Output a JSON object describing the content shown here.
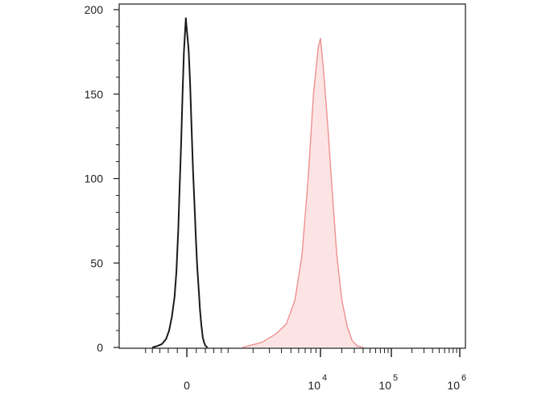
{
  "chart_data": {
    "type": "area",
    "title": "",
    "xlabel": "",
    "ylabel": "",
    "ylim": [
      0,
      200
    ],
    "y_ticks": [
      "0",
      "50",
      "100",
      "150",
      "200"
    ],
    "x_ticks": [
      {
        "base": "0",
        "exp": ""
      },
      {
        "base": "10",
        "exp": "4"
      },
      {
        "base": "10",
        "exp": "5"
      },
      {
        "base": "10",
        "exp": "6"
      }
    ],
    "x_scale": "biexponential",
    "grid": false,
    "legend": "none",
    "series": [
      {
        "color": "#1a1a1a",
        "fill": "none",
        "points": [
          [
            -800,
            0
          ],
          [
            -650,
            1
          ],
          [
            -550,
            2
          ],
          [
            -450,
            5
          ],
          [
            -380,
            10
          ],
          [
            -320,
            18
          ],
          [
            -260,
            30
          ],
          [
            -220,
            45
          ],
          [
            -180,
            70
          ],
          [
            -150,
            95
          ],
          [
            -120,
            120
          ],
          [
            -90,
            150
          ],
          [
            -60,
            175
          ],
          [
            -40,
            185
          ],
          [
            -20,
            195
          ],
          [
            0,
            188
          ],
          [
            20,
            182
          ],
          [
            40,
            175
          ],
          [
            70,
            155
          ],
          [
            100,
            130
          ],
          [
            130,
            105
          ],
          [
            160,
            85
          ],
          [
            190,
            65
          ],
          [
            220,
            48
          ],
          [
            250,
            35
          ],
          [
            280,
            22
          ],
          [
            310,
            13
          ],
          [
            340,
            6
          ],
          [
            370,
            3
          ],
          [
            400,
            1
          ],
          [
            450,
            0
          ]
        ]
      },
      {
        "color": "#ef8f8f",
        "fill": "#fde4e4",
        "points": [
          [
            1500,
            0
          ],
          [
            2500,
            3
          ],
          [
            3500,
            8
          ],
          [
            4500,
            14
          ],
          [
            5500,
            28
          ],
          [
            6500,
            55
          ],
          [
            7500,
            100
          ],
          [
            8500,
            150
          ],
          [
            9500,
            178
          ],
          [
            10000,
            183
          ],
          [
            11000,
            165
          ],
          [
            12500,
            135
          ],
          [
            14500,
            95
          ],
          [
            17000,
            55
          ],
          [
            20000,
            28
          ],
          [
            24000,
            12
          ],
          [
            28000,
            4
          ],
          [
            33000,
            1
          ],
          [
            40000,
            0
          ]
        ]
      }
    ]
  },
  "colors": {
    "axis": "#1a1a1a",
    "negative": "#1a1a1a",
    "positive_line": "#ef8f8f",
    "positive_fill": "#fde4e4"
  }
}
